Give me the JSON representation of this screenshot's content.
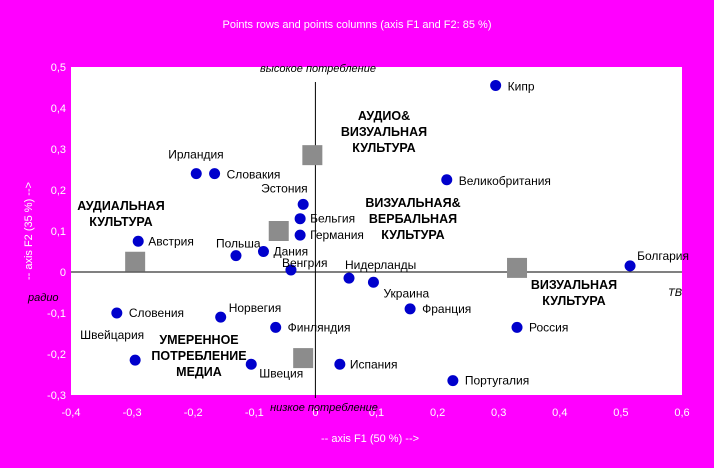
{
  "chart_data": {
    "type": "scatter",
    "title": "Points rows and points columns (axis F1 and F2: 85 %)",
    "xlabel": "-- axis F1 (50 %) -->",
    "ylabel": "-- axis F2 (35 %) -->",
    "xlim": [
      -0.4,
      0.6
    ],
    "ylim": [
      -0.3,
      0.5
    ],
    "x_ticks": [
      "-0,4",
      "-0,3",
      "-0,2",
      "-0,1",
      "0",
      "0,1",
      "0,2",
      "0,3",
      "0,4",
      "0,5",
      "0,6"
    ],
    "y_ticks": [
      "0,5",
      "0,4",
      "0,3",
      "0,2",
      "0,1",
      "0",
      "-0,1",
      "-0,2",
      "-0,3"
    ],
    "grid": false,
    "axis_end_labels": {
      "y_top": "высокое потребление",
      "y_bottom": "низкое потребление",
      "x_left": "радио",
      "x_right": "ТВ"
    },
    "rows": [
      {
        "label": "Кипр",
        "x": 0.295,
        "y": 0.455
      },
      {
        "label": "Великобритания",
        "x": 0.215,
        "y": 0.225
      },
      {
        "label": "Ирландия",
        "x": -0.195,
        "y": 0.24
      },
      {
        "label": "Словакия",
        "x": -0.165,
        "y": 0.24
      },
      {
        "label": "Эстония",
        "x": -0.02,
        "y": 0.165
      },
      {
        "label": "Бельгия",
        "x": -0.025,
        "y": 0.13
      },
      {
        "label": "Германия",
        "x": -0.025,
        "y": 0.09
      },
      {
        "label": "Австрия",
        "x": -0.29,
        "y": 0.075
      },
      {
        "label": "Польша",
        "x": -0.13,
        "y": 0.04
      },
      {
        "label": "Дания",
        "x": -0.085,
        "y": 0.05
      },
      {
        "label": "Венгрия",
        "x": -0.04,
        "y": 0.005
      },
      {
        "label": "Нидерланды",
        "x": 0.055,
        "y": -0.015
      },
      {
        "label": "Украина",
        "x": 0.095,
        "y": -0.025
      },
      {
        "label": "Болгария",
        "x": 0.515,
        "y": 0.015
      },
      {
        "label": "Словения",
        "x": -0.325,
        "y": -0.1
      },
      {
        "label": "Норвегия",
        "x": -0.155,
        "y": -0.11
      },
      {
        "label": "Финляндия",
        "x": -0.065,
        "y": -0.135
      },
      {
        "label": "Франция",
        "x": 0.155,
        "y": -0.09
      },
      {
        "label": "Россия",
        "x": 0.33,
        "y": -0.135
      },
      {
        "label": "Швейцария",
        "x": -0.295,
        "y": -0.215
      },
      {
        "label": "Швеция",
        "x": -0.105,
        "y": -0.225
      },
      {
        "label": "Испания",
        "x": 0.04,
        "y": -0.225
      },
      {
        "label": "Португалия",
        "x": 0.225,
        "y": -0.265
      }
    ],
    "columns": [
      {
        "label": "АУДИО& ВИЗУАЛЬНАЯ КУЛЬТУРА",
        "x": -0.005,
        "y": 0.285
      },
      {
        "label": "ВИЗУАЛЬНАЯ& ВЕРБАЛЬНАЯ КУЛЬТУРА",
        "x": -0.06,
        "y": 0.1
      },
      {
        "label": "АУДИАЛЬНАЯ КУЛЬТУРА",
        "x": -0.295,
        "y": 0.025
      },
      {
        "label": "ВИЗУАЛЬНАЯ КУЛЬТУРА",
        "x": 0.33,
        "y": 0.01
      },
      {
        "label": "УМЕРЕННОЕ ПОТРЕБЛЕНИЕ МЕДИА",
        "x": -0.02,
        "y": -0.21
      }
    ],
    "colors": {
      "background": "#ff00ff",
      "plot_area": "#ffffff",
      "rows_marker": "#0000cc",
      "columns_marker": "#8c8c8c"
    }
  }
}
